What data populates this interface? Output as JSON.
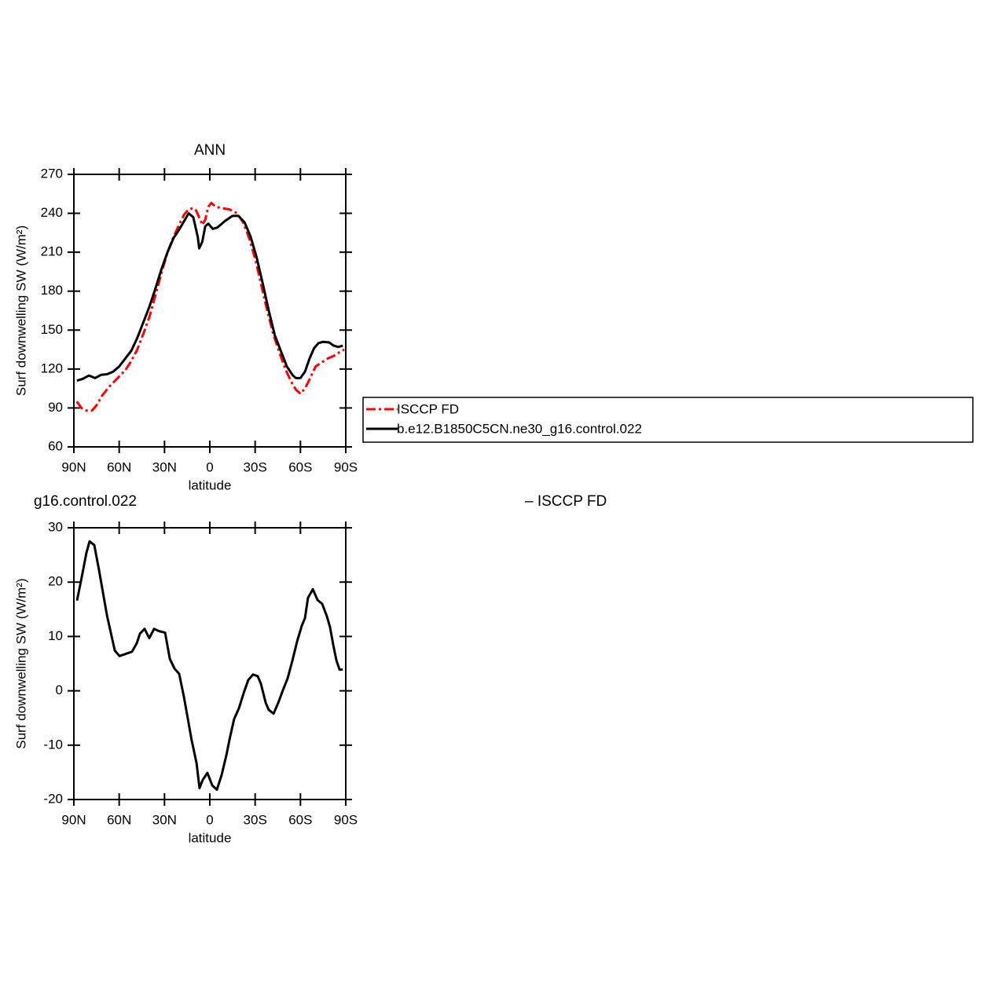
{
  "chart_data": [
    {
      "type": "line",
      "title": "ANN",
      "xlabel": "latitude",
      "ylabel": "Surf downwelling SW (W/m²)",
      "xlim": [
        90,
        -90
      ],
      "xticks": [
        {
          "value": 90,
          "label": "90N"
        },
        {
          "value": 60,
          "label": "60N"
        },
        {
          "value": 30,
          "label": "30N"
        },
        0,
        {
          "value": -30,
          "label": "30S"
        },
        {
          "value": -60,
          "label": "60S"
        },
        {
          "value": -90,
          "label": "90S"
        }
      ],
      "ylim": [
        60,
        270
      ],
      "yticks": [
        60,
        90,
        120,
        150,
        180,
        210,
        240,
        270
      ],
      "series": [
        {
          "name": "ISCCP FD",
          "color": "#ff0000",
          "dash": true,
          "x": [
            88,
            85,
            82,
            78,
            75,
            71,
            66,
            61,
            56,
            52,
            48,
            44,
            40,
            36,
            32,
            28,
            24,
            20,
            17,
            14,
            11,
            9,
            6,
            5,
            3,
            1,
            -1,
            -4,
            -8,
            -13,
            -18,
            -22,
            -26,
            -30,
            -34,
            -38,
            -42,
            -46,
            -50,
            -54,
            -57,
            -60,
            -63,
            -66,
            -70,
            -74,
            -78,
            -82,
            -86,
            -89
          ],
          "values": [
            95,
            90,
            88,
            88,
            92,
            100,
            107,
            113,
            119,
            126,
            135,
            147,
            160,
            177,
            194,
            210,
            222,
            232,
            239,
            243,
            244,
            242,
            234,
            231,
            235,
            245,
            248,
            245,
            244,
            243,
            240,
            233,
            221,
            205,
            185,
            165,
            147,
            133,
            120,
            110,
            104,
            101,
            105,
            112,
            122,
            125,
            128,
            130,
            133,
            135
          ]
        },
        {
          "name": "b.e12.B1850C5CN.ne30_g16.control.022",
          "color": "#000000",
          "dash": false,
          "x": [
            88,
            84,
            80,
            76,
            72,
            68,
            64,
            60,
            56,
            52,
            48,
            44,
            40,
            36,
            32,
            28,
            24,
            20,
            16,
            14,
            11,
            8,
            7,
            5,
            3,
            1,
            -2,
            -5,
            -10,
            -15,
            -19,
            -23,
            -27,
            -31,
            -35,
            -39,
            -43,
            -47,
            -51,
            -55,
            -57,
            -60,
            -63,
            -66,
            -69,
            -72,
            -75,
            -79,
            -82,
            -85,
            -88
          ],
          "values": [
            111,
            112.5,
            115,
            113,
            115.5,
            116,
            118,
            122,
            128,
            134,
            144,
            156,
            168,
            182,
            197,
            210,
            221,
            228,
            236,
            240,
            237,
            222,
            213,
            218,
            230,
            232,
            228,
            229,
            234,
            238,
            238,
            233,
            222,
            206,
            186,
            165,
            146,
            134,
            122,
            115,
            113,
            113,
            118,
            128,
            136,
            140,
            141,
            140.5,
            138,
            137,
            138
          ]
        }
      ]
    },
    {
      "type": "line",
      "title_parts": [
        "g16.control.022",
        "– ISCCP FD"
      ],
      "xlabel": "latitude",
      "ylabel": "Surf downwelling SW (W/m²)",
      "xlim": [
        90,
        -90
      ],
      "xticks": [
        {
          "value": 90,
          "label": "90N"
        },
        {
          "value": 60,
          "label": "60N"
        },
        {
          "value": 30,
          "label": "30N"
        },
        0,
        {
          "value": -30,
          "label": "30S"
        },
        {
          "value": -60,
          "label": "60S"
        },
        {
          "value": -90,
          "label": "90S"
        }
      ],
      "ylim": [
        -20,
        30
      ],
      "yticks": [
        -20,
        -10,
        0,
        10,
        20,
        30
      ],
      "series": [
        {
          "color": "#000000",
          "dash": false,
          "x": [
            87.9,
            84.8,
            81.7,
            79.6,
            76.5,
            73.4,
            68.1,
            62.9,
            59.8,
            51.5,
            48.3,
            46.3,
            43.2,
            40.1,
            36.9,
            33.8,
            29.6,
            26.5,
            23.4,
            20.3,
            17.2,
            15.1,
            12.0,
            8.8,
            6.8,
            4.7,
            1.6,
            -1.6,
            -4.7,
            -7.8,
            -10.9,
            -13.0,
            -16.1,
            -19.3,
            -22.4,
            -25.5,
            -28.6,
            -31.7,
            -33.8,
            -37.0,
            -39.0,
            -42.2,
            -45.3,
            -48.4,
            -51.5,
            -54.6,
            -57.8,
            -60.9,
            -63.0,
            -65.0,
            -68.2,
            -71.3,
            -74.4,
            -77.5,
            -79.6,
            -81.7,
            -83.8,
            -85.9,
            -88.0
          ],
          "values": [
            16.6,
            20.9,
            25.4,
            27.5,
            26.8,
            22.3,
            13.9,
            7.4,
            6.4,
            7.2,
            8.8,
            10.5,
            11.4,
            9.7,
            11.4,
            11.0,
            10.7,
            5.9,
            4.1,
            3.1,
            -1.0,
            -4.3,
            -9.1,
            -13.3,
            -17.9,
            -16.4,
            -15.1,
            -17.4,
            -18.2,
            -15.5,
            -11.9,
            -9.0,
            -5.2,
            -3.2,
            -0.4,
            2.0,
            3.0,
            2.7,
            1.3,
            -2.2,
            -3.5,
            -4.2,
            -2.2,
            0.1,
            2.3,
            5.5,
            9.1,
            12.0,
            13.4,
            17.1,
            18.7,
            16.7,
            16.0,
            13.7,
            11.7,
            8.5,
            5.6,
            3.9,
            3.9
          ]
        }
      ]
    }
  ]
}
